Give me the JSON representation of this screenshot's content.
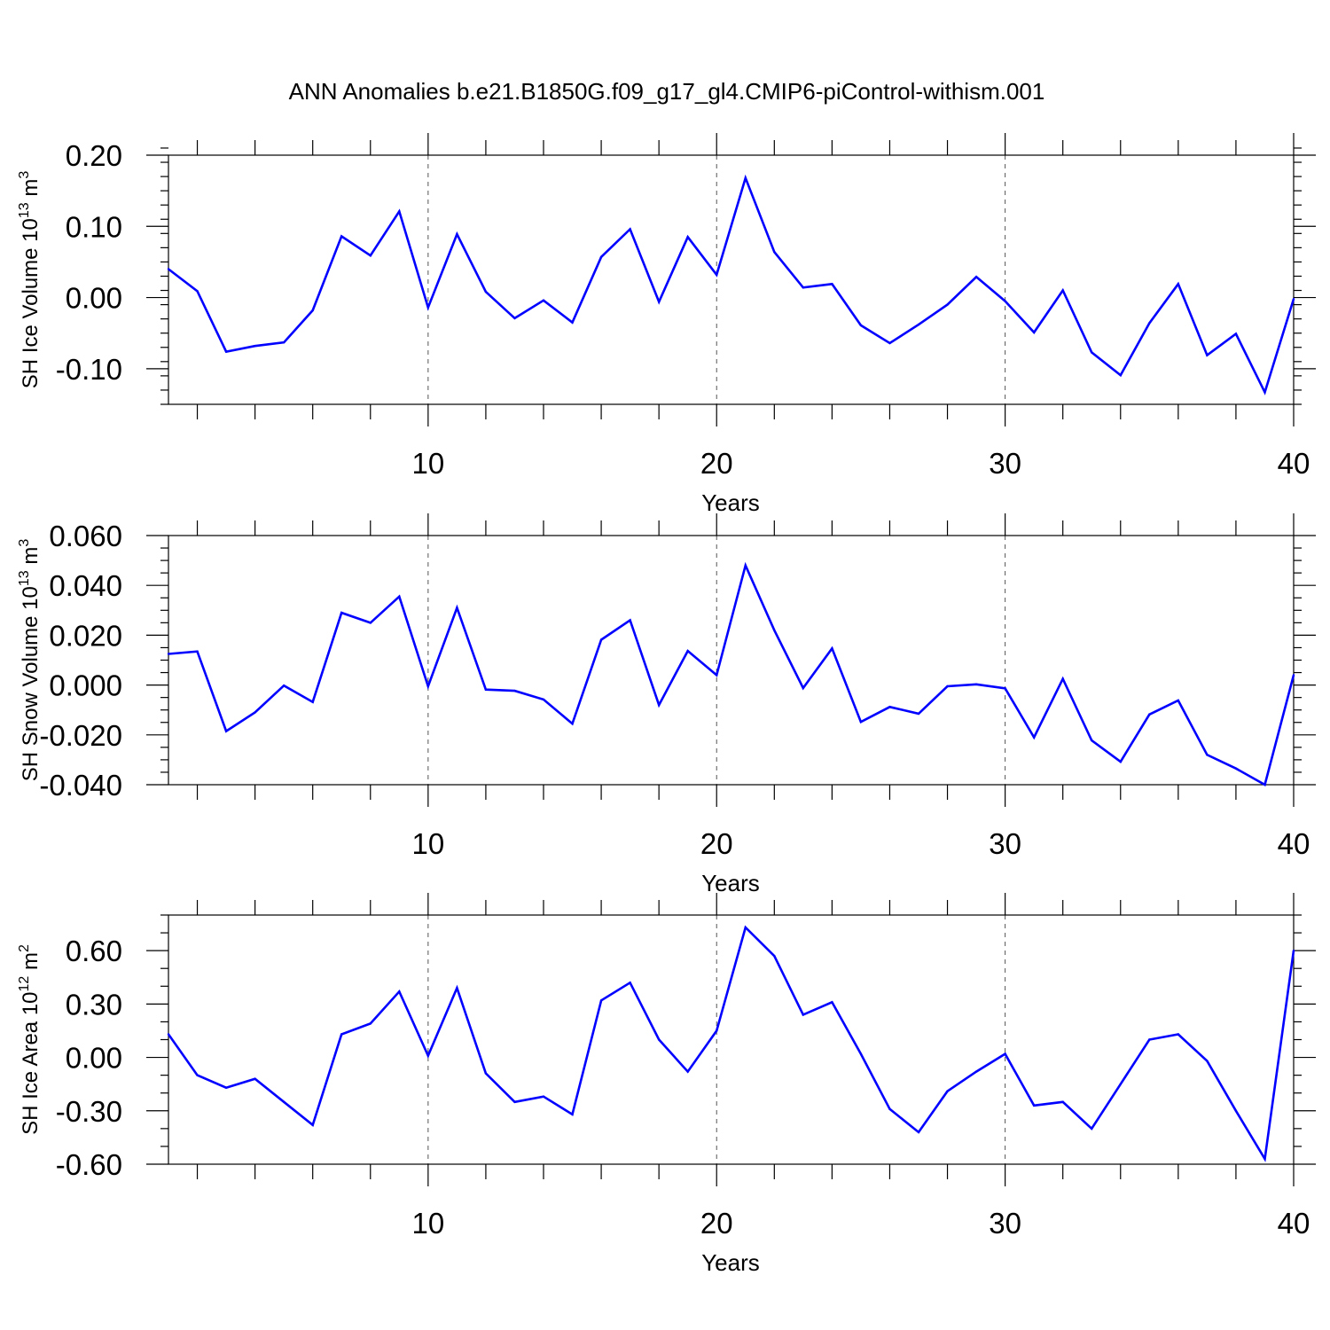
{
  "title": "ANN Anomalies b.e21.B1850G.f09_g17_gl4.CMIP6-piControl-withism.001",
  "colors": {
    "line": "#0000ff",
    "axis": "#000000",
    "grid": "#555555"
  },
  "x_tick_labels": [
    "10",
    "20",
    "30",
    "40"
  ],
  "chart_data": [
    {
      "type": "line",
      "title": "ANN Anomalies b.e21.B1850G.f09_g17_gl4.CMIP6-piControl-withism.001",
      "xlabel": "Years",
      "ylabel": "SH Ice Volume",
      "ylabel_unit_base": "10",
      "ylabel_unit_exp": "13",
      "ylabel_unit_m": "m",
      "ylabel_unit_mexp": "3",
      "xlim": [
        1,
        40
      ],
      "ylim": [
        -0.15,
        0.2
      ],
      "x_ticks": [
        10,
        20,
        30,
        40
      ],
      "y_ticks": [
        0.2,
        0.1,
        0.0,
        -0.1
      ],
      "y_tick_labels": [
        "0.20",
        "0.10",
        "0.00",
        "-0.10"
      ],
      "y_minor_step": 0.02,
      "x_grid": true,
      "x": [
        1,
        2,
        3,
        4,
        5,
        6,
        7,
        8,
        9,
        10,
        11,
        12,
        13,
        14,
        15,
        16,
        17,
        18,
        19,
        20,
        21,
        22,
        23,
        24,
        25,
        26,
        27,
        28,
        29,
        30,
        31,
        32,
        33,
        34,
        35,
        36,
        37,
        38,
        39,
        40
      ],
      "values": [
        0.04,
        0.009,
        -0.076,
        -0.068,
        -0.063,
        -0.018,
        0.086,
        0.059,
        0.121,
        -0.014,
        0.089,
        0.008,
        -0.029,
        -0.004,
        -0.035,
        0.057,
        0.096,
        -0.006,
        0.085,
        0.032,
        0.168,
        0.064,
        0.014,
        0.019,
        -0.039,
        -0.064,
        -0.038,
        -0.01,
        0.029,
        -0.005,
        -0.049,
        0.01,
        -0.077,
        -0.109,
        -0.036,
        0.019,
        -0.081,
        -0.051,
        -0.133,
        -0.002
      ]
    },
    {
      "type": "line",
      "xlabel": "Years",
      "ylabel": "SH Snow Volume",
      "ylabel_unit_base": "10",
      "ylabel_unit_exp": "13",
      "ylabel_unit_m": "m",
      "ylabel_unit_mexp": "3",
      "xlim": [
        1,
        40
      ],
      "ylim": [
        -0.04,
        0.06
      ],
      "x_ticks": [
        10,
        20,
        30,
        40
      ],
      "y_ticks": [
        0.06,
        0.04,
        0.02,
        0.0,
        -0.02,
        -0.04
      ],
      "y_tick_labels": [
        "0.060",
        "0.040",
        "0.020",
        "0.000",
        "-0.020",
        "-0.040"
      ],
      "y_minor_step": 0.005,
      "x_grid": true,
      "x": [
        1,
        2,
        3,
        4,
        5,
        6,
        7,
        8,
        9,
        10,
        11,
        12,
        13,
        14,
        15,
        16,
        17,
        18,
        19,
        20,
        21,
        22,
        23,
        24,
        25,
        26,
        27,
        28,
        29,
        30,
        31,
        32,
        33,
        34,
        35,
        36,
        37,
        38,
        39,
        40
      ],
      "values": [
        0.0125,
        0.0135,
        -0.0185,
        -0.011,
        -0.0002,
        -0.0068,
        0.029,
        0.025,
        0.0355,
        -0.0005,
        0.031,
        -0.0018,
        -0.0023,
        -0.0058,
        -0.0155,
        0.0182,
        0.026,
        -0.008,
        0.0137,
        0.004,
        0.048,
        0.022,
        -0.0012,
        0.0147,
        -0.0148,
        -0.0088,
        -0.0115,
        -0.0005,
        0.0003,
        -0.0013,
        -0.021,
        0.0025,
        -0.0222,
        -0.0308,
        -0.0118,
        -0.0062,
        -0.028,
        -0.0335,
        -0.04,
        0.004
      ]
    },
    {
      "type": "line",
      "xlabel": "Years",
      "ylabel": "SH Ice Area",
      "ylabel_unit_base": "10",
      "ylabel_unit_exp": "12",
      "ylabel_unit_m": "m",
      "ylabel_unit_mexp": "2",
      "xlim": [
        1,
        40
      ],
      "ylim": [
        -0.6,
        0.8
      ],
      "x_ticks": [
        10,
        20,
        30,
        40
      ],
      "y_ticks": [
        0.6,
        0.3,
        0.0,
        -0.3,
        -0.6
      ],
      "y_tick_labels": [
        "0.60",
        "0.30",
        "0.00",
        "-0.30",
        "-0.60"
      ],
      "y_minor_step": 0.1,
      "x_grid": true,
      "x": [
        1,
        2,
        3,
        4,
        5,
        6,
        7,
        8,
        9,
        10,
        11,
        12,
        13,
        14,
        15,
        16,
        17,
        18,
        19,
        20,
        21,
        22,
        23,
        24,
        25,
        26,
        27,
        28,
        29,
        30,
        31,
        32,
        33,
        34,
        35,
        36,
        37,
        38,
        39,
        40
      ],
      "values": [
        0.13,
        -0.1,
        -0.17,
        -0.12,
        -0.25,
        -0.38,
        0.13,
        0.19,
        0.37,
        0.01,
        0.39,
        -0.09,
        -0.25,
        -0.22,
        -0.32,
        0.32,
        0.42,
        0.1,
        -0.08,
        0.15,
        0.73,
        0.57,
        0.24,
        0.31,
        0.02,
        -0.29,
        -0.42,
        -0.19,
        -0.08,
        0.02,
        -0.27,
        -0.25,
        -0.4,
        -0.15,
        0.1,
        0.13,
        -0.02,
        -0.3,
        -0.57,
        0.6
      ]
    }
  ]
}
